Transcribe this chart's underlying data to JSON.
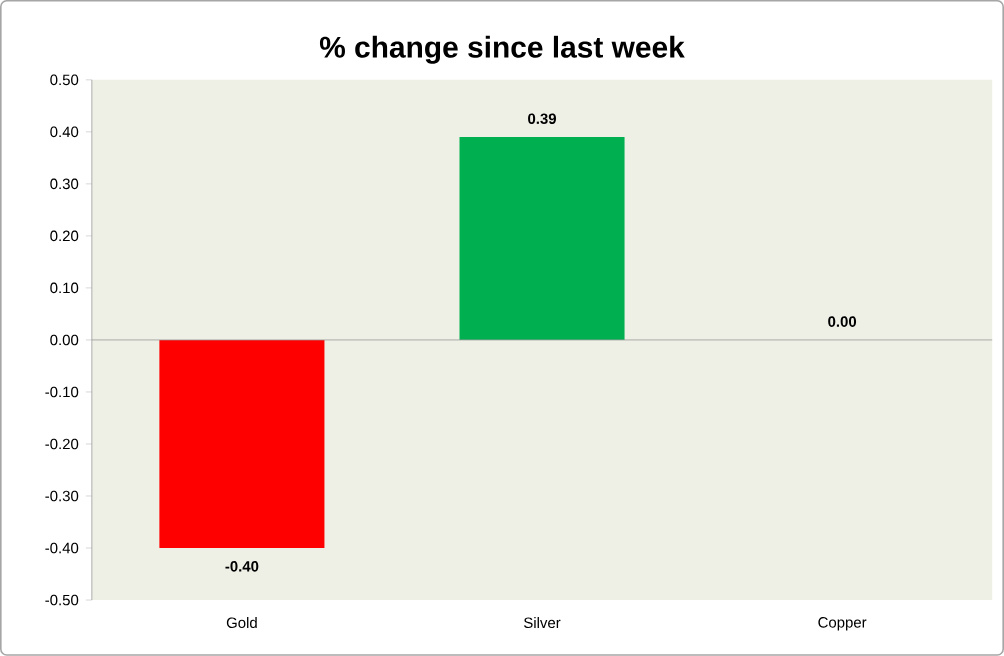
{
  "chart_data": {
    "type": "bar",
    "title": "% change since last week",
    "categories": [
      "Gold",
      "Silver",
      "Copper"
    ],
    "values": [
      -0.4,
      0.39,
      0.0
    ],
    "colors": [
      "#ff0000",
      "#00b050",
      "#e46c0a"
    ],
    "value_labels": [
      "-0.40",
      "0.39",
      "0.00"
    ],
    "ylim": [
      -0.5,
      0.5
    ],
    "yticks": [
      {
        "value": -0.5,
        "label": "-0.50"
      },
      {
        "value": -0.4,
        "label": "-0.40"
      },
      {
        "value": -0.3,
        "label": "-0.30"
      },
      {
        "value": -0.2,
        "label": "-0.20"
      },
      {
        "value": -0.1,
        "label": "-0.10"
      },
      {
        "value": 0,
        "label": "0.00"
      },
      {
        "value": 0.1,
        "label": "0.10"
      },
      {
        "value": 0.2,
        "label": "0.20"
      },
      {
        "value": 0.3,
        "label": "0.30"
      },
      {
        "value": 0.4,
        "label": "0.40"
      },
      {
        "value": 0.5,
        "label": "0.50"
      }
    ],
    "tick_labels": "xy"
  }
}
